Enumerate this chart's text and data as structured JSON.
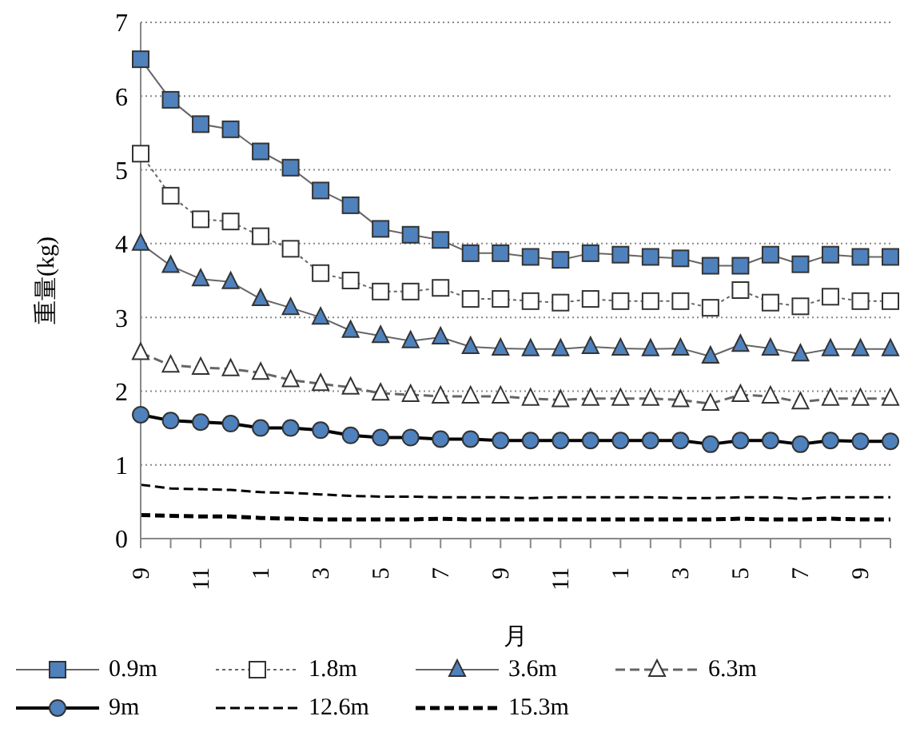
{
  "chart_data": {
    "type": "line",
    "xlabel": "月",
    "ylabel": "重量(kg)",
    "categories": [
      "9",
      null,
      "11",
      null,
      "1",
      null,
      "3",
      null,
      "5",
      null,
      "7",
      null,
      "9",
      null,
      "11",
      null,
      "1",
      null,
      "3",
      null,
      "5",
      null,
      "7",
      null,
      "9",
      null
    ],
    "ylim": [
      0,
      7
    ],
    "yticks": [
      0,
      1,
      2,
      3,
      4,
      5,
      6,
      7
    ],
    "grid": "y",
    "legend": "bottom",
    "series": [
      {
        "name": "0.9m",
        "color": "#4f81bd",
        "marker": "square",
        "line_style": "solid",
        "values": [
          6.5,
          5.95,
          5.62,
          5.55,
          5.25,
          5.03,
          4.72,
          4.52,
          4.2,
          4.12,
          4.05,
          3.87,
          3.87,
          3.82,
          3.78,
          3.87,
          3.85,
          3.82,
          3.8,
          3.7,
          3.7,
          3.85,
          3.72,
          3.85,
          3.82,
          3.82
        ]
      },
      {
        "name": "1.8m",
        "color": "#ffffff",
        "marker": "square",
        "line_style": "dotted",
        "values": [
          5.22,
          4.65,
          4.33,
          4.3,
          4.1,
          3.93,
          3.6,
          3.5,
          3.35,
          3.35,
          3.4,
          3.25,
          3.25,
          3.22,
          3.2,
          3.25,
          3.22,
          3.22,
          3.22,
          3.13,
          3.37,
          3.2,
          3.15,
          3.28,
          3.22,
          3.22
        ]
      },
      {
        "name": "3.6m",
        "color": "#4f81bd",
        "marker": "triangle",
        "line_style": "solid",
        "values": [
          4.0,
          3.7,
          3.52,
          3.48,
          3.25,
          3.13,
          3.0,
          2.82,
          2.75,
          2.68,
          2.73,
          2.6,
          2.58,
          2.57,
          2.57,
          2.6,
          2.58,
          2.57,
          2.58,
          2.47,
          2.63,
          2.58,
          2.5,
          2.57,
          2.57,
          2.57
        ]
      },
      {
        "name": "6.3m",
        "color": "#ffffff",
        "marker": "triangle",
        "line_style": "dashed",
        "values": [
          2.52,
          2.35,
          2.32,
          2.3,
          2.25,
          2.15,
          2.1,
          2.05,
          1.97,
          1.95,
          1.93,
          1.93,
          1.93,
          1.9,
          1.88,
          1.9,
          1.9,
          1.9,
          1.88,
          1.83,
          1.95,
          1.93,
          1.85,
          1.9,
          1.9,
          1.9
        ]
      },
      {
        "name": "9m",
        "color": "#4f81bd",
        "marker": "circle",
        "line_style": "solid",
        "values": [
          1.68,
          1.6,
          1.58,
          1.56,
          1.5,
          1.5,
          1.47,
          1.4,
          1.37,
          1.37,
          1.35,
          1.35,
          1.33,
          1.33,
          1.33,
          1.33,
          1.33,
          1.33,
          1.33,
          1.28,
          1.33,
          1.33,
          1.28,
          1.33,
          1.32,
          1.32
        ]
      },
      {
        "name": "12.6m",
        "color": "#000000",
        "marker": "none",
        "line_style": "dashed",
        "values": [
          0.73,
          0.68,
          0.67,
          0.66,
          0.63,
          0.62,
          0.6,
          0.58,
          0.57,
          0.57,
          0.56,
          0.56,
          0.56,
          0.55,
          0.56,
          0.56,
          0.56,
          0.56,
          0.55,
          0.55,
          0.56,
          0.56,
          0.54,
          0.56,
          0.56,
          0.56
        ]
      },
      {
        "name": "15.3m",
        "color": "#000000",
        "marker": "none",
        "line_style": "dashed",
        "values": [
          0.32,
          0.31,
          0.3,
          0.3,
          0.28,
          0.27,
          0.26,
          0.26,
          0.26,
          0.26,
          0.27,
          0.26,
          0.26,
          0.26,
          0.26,
          0.26,
          0.26,
          0.26,
          0.26,
          0.26,
          0.27,
          0.26,
          0.26,
          0.27,
          0.26,
          0.26
        ]
      }
    ]
  }
}
